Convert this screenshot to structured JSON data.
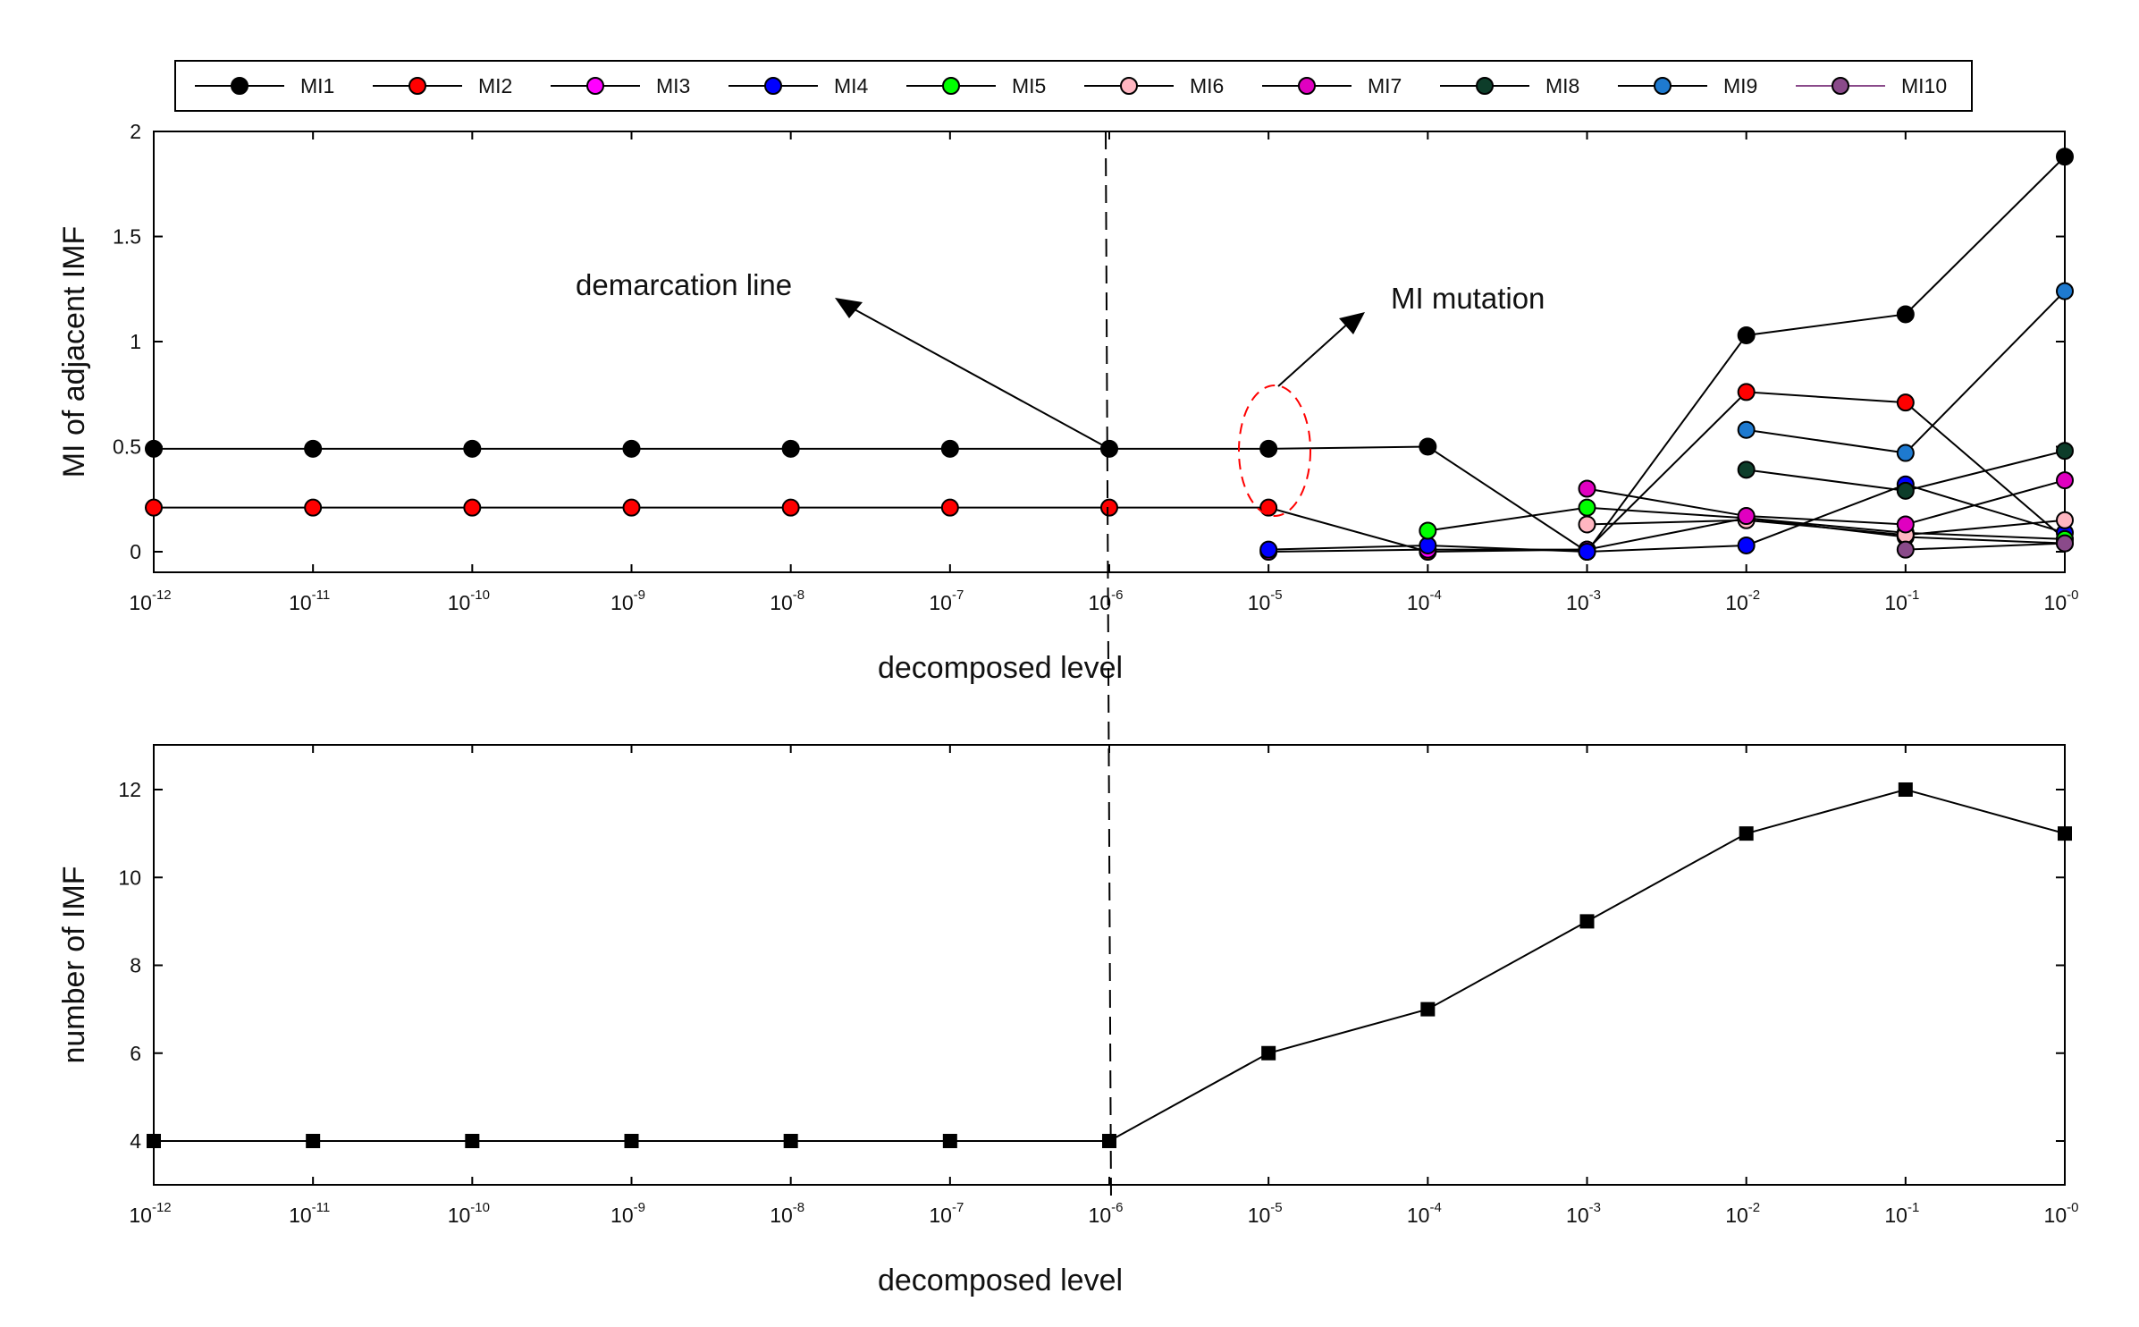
{
  "chart_data": [
    {
      "type": "line",
      "ylabel": "MI of adjacent IMF",
      "xlabel": "decomposed level",
      "ylim": [
        -0.1,
        2.0
      ],
      "yticks": [
        0,
        0.5,
        1,
        1.5,
        2
      ],
      "ytick_labels": [
        "0",
        "0.5",
        "1",
        "1.5",
        "2"
      ],
      "xtick_labels": [
        {
          "base": "10",
          "exp": "-12"
        },
        {
          "base": "10",
          "exp": "-11"
        },
        {
          "base": "10",
          "exp": "-10"
        },
        {
          "base": "10",
          "exp": "-9"
        },
        {
          "base": "10",
          "exp": "-8"
        },
        {
          "base": "10",
          "exp": "-7"
        },
        {
          "base": "10",
          "exp": "-6"
        },
        {
          "base": "10",
          "exp": "-5"
        },
        {
          "base": "10",
          "exp": "-4"
        },
        {
          "base": "10",
          "exp": "-3"
        },
        {
          "base": "10",
          "exp": "-2"
        },
        {
          "base": "10",
          "exp": "-1"
        },
        {
          "base": "10",
          "exp": "-0"
        }
      ],
      "demarcation_index": 6,
      "series": [
        {
          "name": "MI1",
          "color": "#000000",
          "values": [
            0.49,
            0.49,
            0.49,
            0.49,
            0.49,
            0.49,
            0.49,
            0.49,
            0.5,
            0.0,
            1.03,
            1.13,
            1.88
          ]
        },
        {
          "name": "MI2",
          "color": "#ff0000",
          "values": [
            0.21,
            0.21,
            0.21,
            0.21,
            0.21,
            0.21,
            0.21,
            0.21,
            0.0,
            0.01,
            0.76,
            0.71,
            0.06
          ]
        },
        {
          "name": "MI3",
          "color": "#ff00ff",
          "values": [
            null,
            null,
            null,
            null,
            null,
            null,
            null,
            0.0,
            0.01,
            0.01,
            0.16,
            0.07,
            0.04
          ]
        },
        {
          "name": "MI4",
          "color": "#0000ff",
          "values": [
            null,
            null,
            null,
            null,
            null,
            null,
            null,
            0.01,
            0.03,
            0.0,
            0.03,
            0.32,
            0.09
          ]
        },
        {
          "name": "MI5",
          "color": "#00ff00",
          "values": [
            null,
            null,
            null,
            null,
            null,
            null,
            null,
            null,
            0.1,
            0.21,
            0.16,
            0.09,
            0.06
          ]
        },
        {
          "name": "MI6",
          "color": "#ffb6c1",
          "values": [
            null,
            null,
            null,
            null,
            null,
            null,
            null,
            null,
            null,
            0.13,
            0.15,
            0.08,
            0.15
          ]
        },
        {
          "name": "MI7",
          "color": "#e000c0",
          "values": [
            null,
            null,
            null,
            null,
            null,
            null,
            null,
            null,
            null,
            0.3,
            0.17,
            0.13,
            0.34
          ]
        },
        {
          "name": "MI8",
          "color": "#0d3d2a",
          "values": [
            null,
            null,
            null,
            null,
            null,
            null,
            null,
            null,
            null,
            null,
            0.39,
            0.29,
            0.48
          ]
        },
        {
          "name": "MI9",
          "color": "#1e7ad0",
          "values": [
            null,
            null,
            null,
            null,
            null,
            null,
            null,
            null,
            null,
            null,
            0.58,
            0.47,
            1.24
          ]
        },
        {
          "name": "MI10",
          "color": "#8a4a8a",
          "values": [
            null,
            null,
            null,
            null,
            null,
            null,
            null,
            null,
            null,
            null,
            null,
            0.01,
            0.04
          ]
        }
      ],
      "annotations": [
        {
          "text": "demarcation line"
        },
        {
          "text": "MI mutation"
        }
      ]
    },
    {
      "type": "line",
      "ylabel": "number of IMF",
      "xlabel": "decomposed level",
      "ylim": [
        3.0,
        13.0
      ],
      "yticks": [
        4,
        6,
        8,
        10,
        12
      ],
      "ytick_labels": [
        "4",
        "6",
        "8",
        "10",
        "12"
      ],
      "series": [
        {
          "name": "number of IMF",
          "color": "#000000",
          "values": [
            4,
            4,
            4,
            4,
            4,
            4,
            4,
            6,
            7,
            9,
            11,
            12,
            11
          ]
        }
      ]
    }
  ]
}
